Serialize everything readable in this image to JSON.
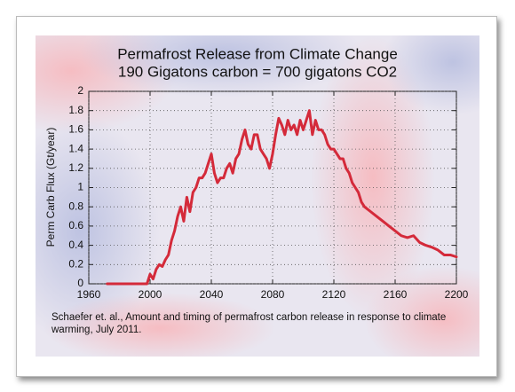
{
  "chart_data": {
    "type": "line",
    "title": "Permafrost Release from Climate Change",
    "subtitle": "190 Gigatons carbon = 700 gigatons CO2",
    "y_label": "Perm Carb Flux (Gt/year)",
    "source": "Schaefer et. al., Amount and timing of permafrost carbon release in response to climate warming, July 2011.",
    "xlim": [
      1960,
      2200
    ],
    "xticks": [
      1960,
      2000,
      2040,
      2080,
      2120,
      2160,
      2200
    ],
    "ylim": [
      0,
      2
    ],
    "yticks": [
      0,
      0.2,
      0.4,
      0.6,
      0.8,
      1,
      1.2,
      1.4,
      1.6,
      1.8,
      2
    ],
    "grid": true,
    "series": [
      {
        "color": "#d42a3a",
        "x": [
          1972,
          1998,
          2000,
          2002,
          2004,
          2006,
          2008,
          2010,
          2012,
          2014,
          2016,
          2018,
          2020,
          2022,
          2024,
          2026,
          2028,
          2030,
          2032,
          2034,
          2036,
          2038,
          2040,
          2042,
          2044,
          2046,
          2048,
          2050,
          2052,
          2054,
          2056,
          2058,
          2060,
          2062,
          2064,
          2066,
          2068,
          2070,
          2072,
          2074,
          2076,
          2078,
          2080,
          2082,
          2084,
          2086,
          2088,
          2090,
          2092,
          2094,
          2096,
          2098,
          2100,
          2102,
          2104,
          2106,
          2108,
          2110,
          2112,
          2114,
          2116,
          2118,
          2120,
          2122,
          2124,
          2126,
          2128,
          2130,
          2132,
          2134,
          2136,
          2138,
          2140,
          2144,
          2148,
          2152,
          2156,
          2160,
          2164,
          2168,
          2172,
          2176,
          2180,
          2184,
          2188,
          2192,
          2196,
          2200
        ],
        "values": [
          0,
          0,
          0.1,
          0.05,
          0.15,
          0.2,
          0.18,
          0.25,
          0.3,
          0.45,
          0.55,
          0.7,
          0.8,
          0.65,
          0.9,
          0.75,
          0.95,
          1.0,
          1.1,
          1.1,
          1.15,
          1.25,
          1.35,
          1.15,
          1.05,
          1.1,
          1.1,
          1.2,
          1.25,
          1.15,
          1.3,
          1.35,
          1.5,
          1.6,
          1.45,
          1.4,
          1.55,
          1.55,
          1.4,
          1.35,
          1.3,
          1.2,
          1.35,
          1.55,
          1.72,
          1.65,
          1.55,
          1.7,
          1.6,
          1.65,
          1.55,
          1.7,
          1.6,
          1.7,
          1.8,
          1.55,
          1.7,
          1.6,
          1.6,
          1.55,
          1.45,
          1.4,
          1.4,
          1.35,
          1.3,
          1.3,
          1.2,
          1.15,
          1.05,
          1.0,
          0.95,
          0.85,
          0.8,
          0.75,
          0.7,
          0.65,
          0.6,
          0.55,
          0.5,
          0.48,
          0.5,
          0.43,
          0.4,
          0.38,
          0.35,
          0.3,
          0.3,
          0.28
        ]
      }
    ]
  }
}
